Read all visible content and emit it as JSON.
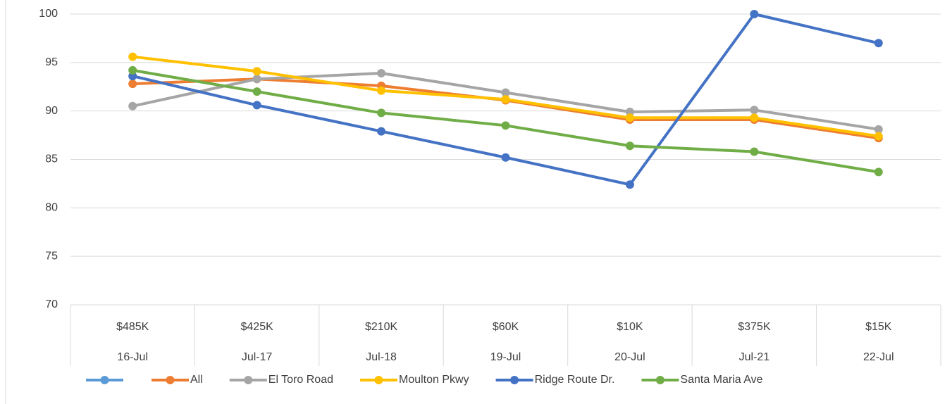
{
  "chart_data": {
    "type": "line",
    "categories": [
      "16-Jul",
      "Jul-17",
      "Jul-18",
      "19-Jul",
      "20-Jul",
      "Jul-21",
      "22-Jul"
    ],
    "category_groups": [
      "$485K",
      "$425K",
      "$210K",
      "$60K",
      "$10K",
      "$375K",
      "$15K"
    ],
    "series": [
      {
        "name": null,
        "color": "#5b9bd5",
        "values": [
          null,
          null,
          null,
          null,
          null,
          null,
          null
        ]
      },
      {
        "name": "All",
        "color": "#ed7d31",
        "values": [
          92.8,
          93.3,
          92.6,
          91.1,
          89.1,
          89.1,
          87.2
        ]
      },
      {
        "name": "El Toro Road",
        "color": "#a5a5a5",
        "values": [
          90.5,
          93.3,
          93.9,
          91.9,
          89.9,
          90.1,
          88.1
        ]
      },
      {
        "name": "Moulton Pkwy",
        "color": "#ffc000",
        "values": [
          95.6,
          94.1,
          92.1,
          91.2,
          89.3,
          89.3,
          87.4
        ]
      },
      {
        "name": "Ridge Route Dr.",
        "color": "#4472c4",
        "values": [
          93.6,
          90.6,
          87.9,
          85.2,
          82.4,
          100,
          97
        ]
      },
      {
        "name": "Santa Maria Ave",
        "color": "#70ad47",
        "values": [
          94.2,
          92.0,
          89.8,
          88.5,
          86.4,
          85.8,
          83.7
        ]
      }
    ],
    "ylim": [
      70,
      100
    ],
    "yticks": [
      70,
      75,
      80,
      85,
      90,
      95,
      100
    ],
    "grid": true,
    "legend": "bottom"
  }
}
